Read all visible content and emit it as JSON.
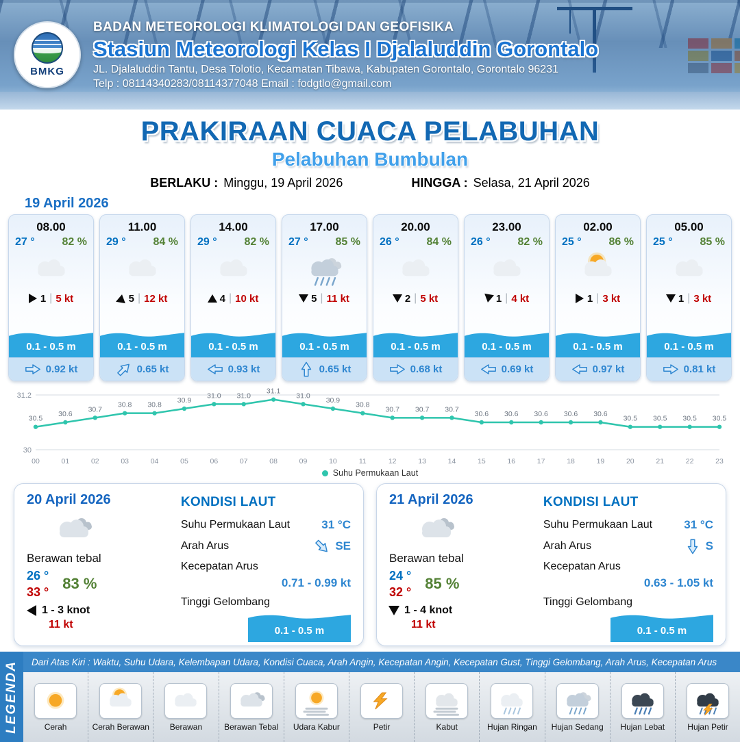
{
  "header": {
    "org": "BADAN METEOROLOGI KLIMATOLOGI DAN GEOFISIKA",
    "station": "Stasiun Meteorologi Kelas I Djalaluddin Gorontalo",
    "address": "JL. Djalaluddin Tantu, Desa Tolotio, Kecamatan Tibawa, Kabupaten Gorontalo, Gorontalo 96231",
    "contact": "Telp : 08114340283/08114377048 Email : fodgtlo@gmail.com",
    "logo_text": "BMKG"
  },
  "title": {
    "main": "PRAKIRAAN CUACA PELABUHAN",
    "subtitle": "Pelabuhan Bumbulan",
    "valid_from_label": "BERLAKU :",
    "valid_from": "Minggu, 19 April 2026",
    "valid_to_label": "HINGGA :",
    "valid_to": "Selasa, 21 April 2026"
  },
  "hourly_section": {
    "date": "19 April 2026",
    "cards": [
      {
        "time": "08.00",
        "temp": "27 °",
        "humidity": "82 %",
        "icon": "berawan",
        "wind_rot": 0,
        "wind_scale": "1",
        "wind_speed": "5 kt",
        "wave": "0.1 - 0.5 m",
        "current_rot": 0,
        "current": "0.92 kt"
      },
      {
        "time": "11.00",
        "temp": "29 °",
        "humidity": "84 %",
        "icon": "berawan",
        "wind_rot": -80,
        "wind_scale": "5",
        "wind_speed": "12 kt",
        "wave": "0.1 - 0.5 m",
        "current_rot": -45,
        "current": "0.65 kt"
      },
      {
        "time": "14.00",
        "temp": "29 °",
        "humidity": "82 %",
        "icon": "berawan",
        "wind_rot": -90,
        "wind_scale": "4",
        "wind_speed": "10 kt",
        "wave": "0.1 - 0.5 m",
        "current_rot": 180,
        "current": "0.93 kt"
      },
      {
        "time": "17.00",
        "temp": "27 °",
        "humidity": "85 %",
        "icon": "hujan-sedang",
        "wind_rot": 90,
        "wind_scale": "5",
        "wind_speed": "11 kt",
        "wave": "0.1 - 0.5 m",
        "current_rot": -90,
        "current": "0.65 kt"
      },
      {
        "time": "20.00",
        "temp": "26 °",
        "humidity": "84 %",
        "icon": "berawan",
        "wind_rot": 90,
        "wind_scale": "2",
        "wind_speed": "5 kt",
        "wave": "0.1 - 0.5 m",
        "current_rot": 0,
        "current": "0.68 kt"
      },
      {
        "time": "23.00",
        "temp": "26 °",
        "humidity": "82 %",
        "icon": "berawan",
        "wind_rot": 100,
        "wind_scale": "1",
        "wind_speed": "4 kt",
        "wave": "0.1 - 0.5 m",
        "current_rot": 180,
        "current": "0.69 kt"
      },
      {
        "time": "02.00",
        "temp": "25 °",
        "humidity": "86 %",
        "icon": "cerah-berawan",
        "wind_rot": 0,
        "wind_scale": "1",
        "wind_speed": "3 kt",
        "wave": "0.1 - 0.5 m",
        "current_rot": 180,
        "current": "0.97 kt"
      },
      {
        "time": "05.00",
        "temp": "25 °",
        "humidity": "85 %",
        "icon": "berawan",
        "wind_rot": 90,
        "wind_scale": "1",
        "wind_speed": "3 kt",
        "wave": "0.1 - 0.5 m",
        "current_rot": 0,
        "current": "0.81 kt"
      }
    ]
  },
  "chart_data": {
    "type": "line",
    "series_name": "Suhu Permukaan Laut",
    "x": [
      "00",
      "01",
      "02",
      "03",
      "04",
      "05",
      "06",
      "07",
      "08",
      "09",
      "10",
      "11",
      "12",
      "13",
      "14",
      "15",
      "16",
      "17",
      "18",
      "19",
      "20",
      "21",
      "22",
      "23"
    ],
    "values": [
      30.5,
      30.6,
      30.7,
      30.8,
      30.8,
      30.9,
      31.0,
      31.0,
      31.1,
      31.0,
      30.9,
      30.8,
      30.7,
      30.7,
      30.7,
      30.6,
      30.6,
      30.6,
      30.6,
      30.6,
      30.5,
      30.5,
      30.5,
      30.5
    ],
    "ylim": [
      30,
      31.2
    ],
    "yticks": [
      30,
      31.2
    ],
    "line_color": "#2fc5ad",
    "grid": "horizontal-only",
    "legend_position": "bottom",
    "value_labels": true
  },
  "daily": [
    {
      "date": "20 April 2026",
      "icon": "berawan-tebal",
      "condition": "Berawan tebal",
      "temp_min": "26 °",
      "temp_max": "33 °",
      "humidity": "83 %",
      "wind_rot": 180,
      "wind_range": "1 - 3 knot",
      "wind_gust": "11 kt",
      "sea_title": "KONDISI LAUT",
      "sst_label": "Suhu Permukaan Laut",
      "sst": "31 °C",
      "current_dir_label": "Arah Arus",
      "current_rot": 45,
      "current_dir": "SE",
      "current_speed_label": "Kecepatan Arus",
      "current_speed": "0.71 - 0.99 kt",
      "wave_label": "Tinggi Gelombang",
      "wave": "0.1 - 0.5 m"
    },
    {
      "date": "21 April 2026",
      "icon": "berawan-tebal",
      "condition": "Berawan tebal",
      "temp_min": "24 °",
      "temp_max": "32 °",
      "humidity": "85 %",
      "wind_rot": 90,
      "wind_range": "1 - 4 knot",
      "wind_gust": "11 kt",
      "sea_title": "KONDISI LAUT",
      "sst_label": "Suhu Permukaan Laut",
      "sst": "31 °C",
      "current_dir_label": "Arah Arus",
      "current_rot": 90,
      "current_dir": "S",
      "current_speed_label": "Kecepatan Arus",
      "current_speed": "0.63 - 1.05 kt",
      "wave_label": "Tinggi Gelombang",
      "wave": "0.1 - 0.5 m"
    }
  ],
  "legend": {
    "vertical_label": "LEGENDA",
    "note": "Dari Atas Kiri : Waktu, Suhu Udara, Kelembapan Udara, Kondisi Cuaca, Arah Angin, Kecepatan Angin, Kecepatan Gust, Tinggi Gelombang, Arah Arus, Kecepatan Arus",
    "items": [
      {
        "icon": "cerah",
        "label": "Cerah"
      },
      {
        "icon": "cerah-berawan",
        "label": "Cerah Berawan"
      },
      {
        "icon": "berawan",
        "label": "Berawan"
      },
      {
        "icon": "berawan-tebal",
        "label": "Berawan Tebal"
      },
      {
        "icon": "udara-kabur",
        "label": "Udara Kabur"
      },
      {
        "icon": "petir",
        "label": "Petir"
      },
      {
        "icon": "kabut",
        "label": "Kabut"
      },
      {
        "icon": "hujan-ringan",
        "label": "Hujan Ringan"
      },
      {
        "icon": "hujan-sedang",
        "label": "Hujan Sedang"
      },
      {
        "icon": "hujan-lebat",
        "label": "Hujan Lebat"
      },
      {
        "icon": "hujan-petir",
        "label": "Hujan Petir"
      }
    ]
  },
  "colors": {
    "title_blue": "#1268b3",
    "subtitle_blue": "#41a0ea",
    "temp_blue": "#0070c0",
    "humidity_green": "#538135",
    "speed_red": "#c00000",
    "wave_blue": "#2da7e0",
    "chart_teal": "#2fc5ad"
  }
}
